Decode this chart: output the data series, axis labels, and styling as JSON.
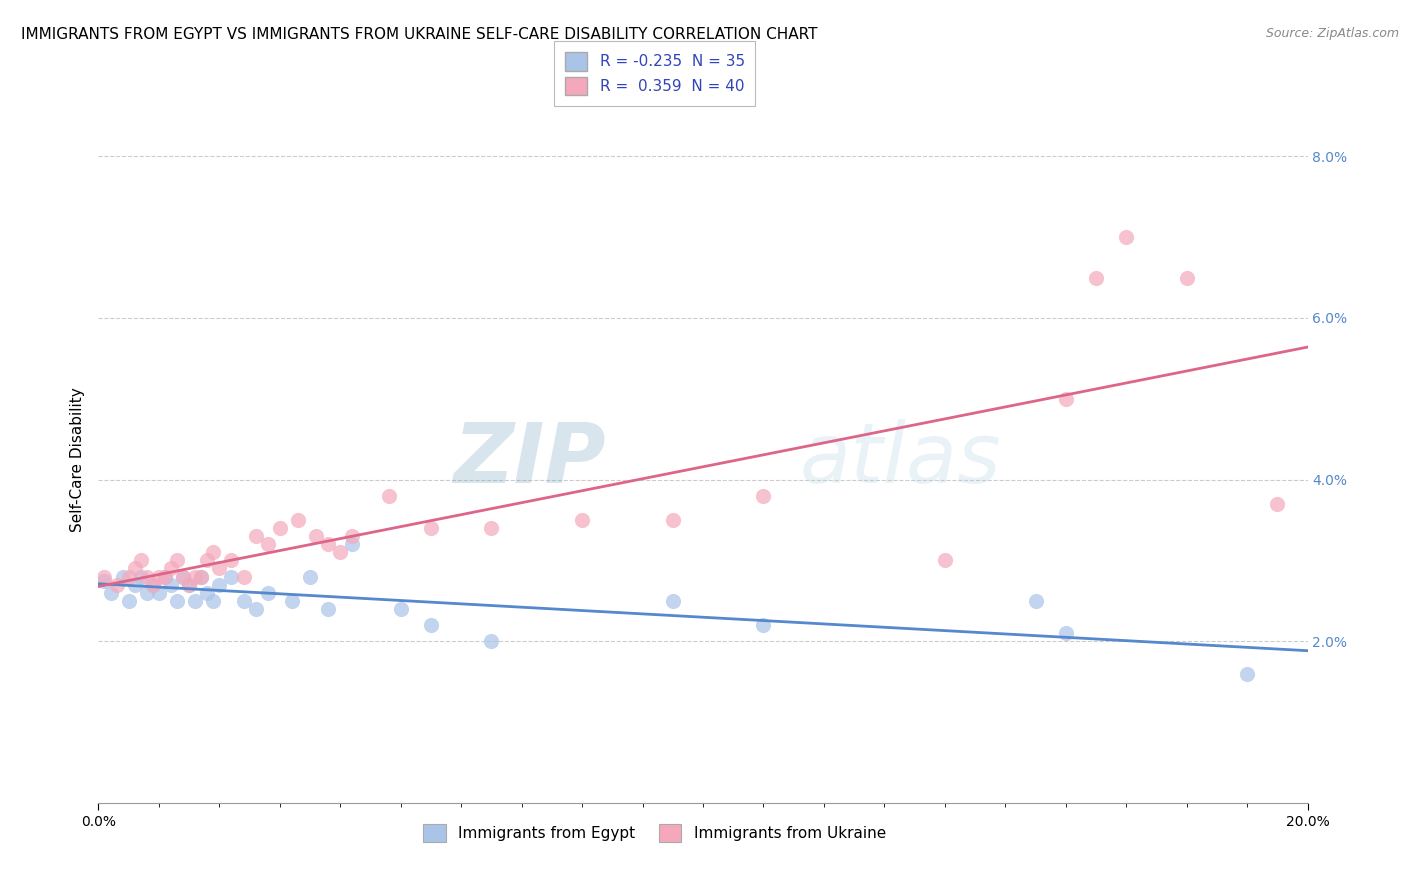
{
  "title": "IMMIGRANTS FROM EGYPT VS IMMIGRANTS FROM UKRAINE SELF-CARE DISABILITY CORRELATION CHART",
  "source": "Source: ZipAtlas.com",
  "xlabel_egypt": "Immigrants from Egypt",
  "xlabel_ukraine": "Immigrants from Ukraine",
  "ylabel": "Self-Care Disability",
  "xlim": [
    0.0,
    0.2
  ],
  "ylim": [
    0.0,
    0.085
  ],
  "ytick_positions": [
    0.02,
    0.04,
    0.06,
    0.08
  ],
  "ytick_labels": [
    "2.0%",
    "4.0%",
    "6.0%",
    "8.0%"
  ],
  "legend_R_egypt": "-0.235",
  "legend_N_egypt": "35",
  "legend_R_ukraine": "0.359",
  "legend_N_ukraine": "40",
  "egypt_color": "#aac4e8",
  "ukraine_color": "#f5a8bb",
  "egypt_line_color": "#5588cc",
  "ukraine_line_color": "#dd6688",
  "watermark_zip": "ZIP",
  "watermark_atlas": "atlas",
  "title_fontsize": 11,
  "axis_label_fontsize": 11,
  "tick_fontsize": 10,
  "legend_fontsize": 11,
  "egypt_x": [
    0.001,
    0.002,
    0.004,
    0.005,
    0.006,
    0.007,
    0.008,
    0.009,
    0.01,
    0.011,
    0.012,
    0.013,
    0.014,
    0.015,
    0.016,
    0.017,
    0.018,
    0.019,
    0.02,
    0.022,
    0.024,
    0.026,
    0.028,
    0.032,
    0.035,
    0.038,
    0.042,
    0.05,
    0.055,
    0.065,
    0.095,
    0.11,
    0.155,
    0.16,
    0.19
  ],
  "egypt_y": [
    0.0275,
    0.026,
    0.028,
    0.025,
    0.027,
    0.028,
    0.026,
    0.027,
    0.026,
    0.028,
    0.027,
    0.025,
    0.028,
    0.027,
    0.025,
    0.028,
    0.026,
    0.025,
    0.027,
    0.028,
    0.025,
    0.024,
    0.026,
    0.025,
    0.028,
    0.024,
    0.032,
    0.024,
    0.022,
    0.02,
    0.025,
    0.022,
    0.025,
    0.021,
    0.016
  ],
  "ukraine_x": [
    0.001,
    0.003,
    0.005,
    0.006,
    0.007,
    0.008,
    0.009,
    0.01,
    0.011,
    0.012,
    0.013,
    0.014,
    0.015,
    0.016,
    0.017,
    0.018,
    0.019,
    0.02,
    0.022,
    0.024,
    0.026,
    0.028,
    0.03,
    0.033,
    0.036,
    0.038,
    0.04,
    0.042,
    0.048,
    0.055,
    0.065,
    0.08,
    0.095,
    0.11,
    0.14,
    0.16,
    0.165,
    0.17,
    0.18,
    0.195
  ],
  "ukraine_y": [
    0.028,
    0.027,
    0.028,
    0.029,
    0.03,
    0.028,
    0.027,
    0.028,
    0.028,
    0.029,
    0.03,
    0.028,
    0.027,
    0.028,
    0.028,
    0.03,
    0.031,
    0.029,
    0.03,
    0.028,
    0.033,
    0.032,
    0.034,
    0.035,
    0.033,
    0.032,
    0.031,
    0.033,
    0.038,
    0.034,
    0.034,
    0.035,
    0.035,
    0.038,
    0.03,
    0.05,
    0.065,
    0.07,
    0.065,
    0.037
  ]
}
